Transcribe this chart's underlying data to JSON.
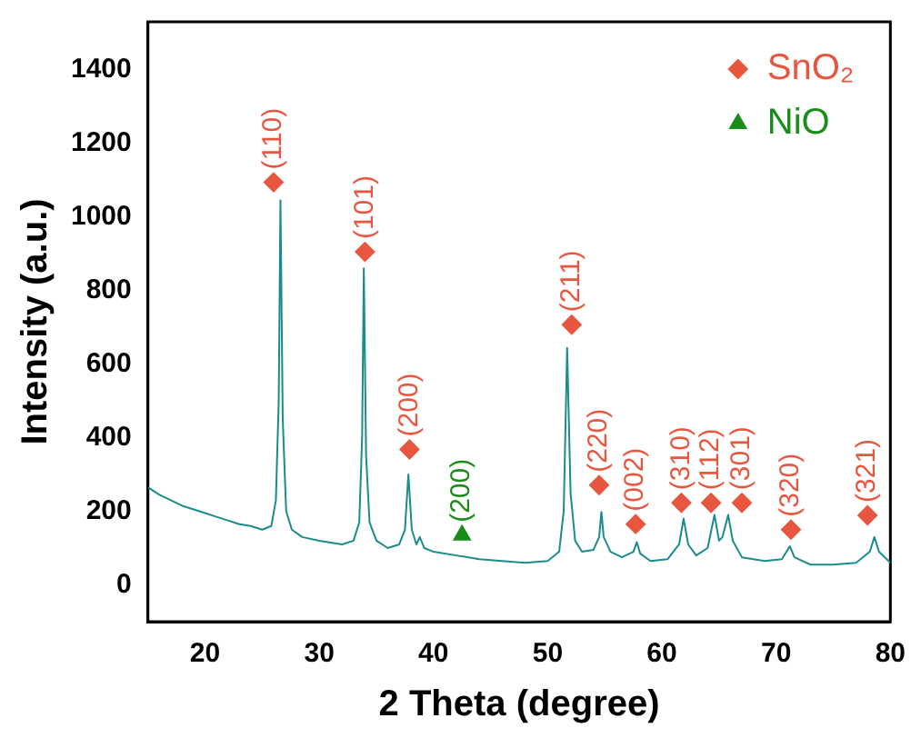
{
  "chart_data": {
    "type": "line",
    "xlabel": "2 Theta (degree)",
    "ylabel": "Intensity (a.u.)",
    "xlim": [
      15,
      80
    ],
    "xticks": [
      20,
      30,
      40,
      50,
      60,
      70,
      80
    ],
    "ylim": [
      -100,
      1530
    ],
    "yticks": [
      0,
      200,
      400,
      600,
      800,
      1000,
      1200,
      1400
    ],
    "grid": false,
    "legend": "top right",
    "series": [
      {
        "color": "#1a8c8c",
        "marker": "none",
        "line_style": "solid",
        "x": [
          15,
          16,
          17,
          18,
          19,
          20,
          21,
          22,
          23,
          24,
          25,
          25.8,
          26.2,
          26.45,
          26.6,
          26.8,
          27.1,
          27.6,
          28.5,
          30,
          31,
          32,
          33,
          33.5,
          33.75,
          33.9,
          34.1,
          34.4,
          35,
          36,
          37,
          37.5,
          37.8,
          38.1,
          38.5,
          38.8,
          39.2,
          40,
          42,
          44,
          46,
          48,
          50,
          51,
          51.4,
          51.7,
          52,
          52.4,
          53,
          54,
          54.5,
          54.7,
          54.9,
          55.5,
          56.5,
          57.5,
          57.8,
          58.1,
          59,
          60.5,
          61.5,
          61.9,
          62.3,
          63,
          64,
          64.6,
          65,
          65.3,
          65.8,
          66.2,
          67,
          69,
          70.5,
          71.2,
          71.6,
          73,
          75,
          77,
          78.2,
          78.6,
          79,
          80
        ],
        "values": [
          265,
          245,
          230,
          215,
          205,
          195,
          185,
          175,
          165,
          160,
          150,
          160,
          230,
          500,
          1045,
          450,
          200,
          150,
          130,
          120,
          115,
          110,
          120,
          170,
          400,
          860,
          350,
          170,
          120,
          100,
          110,
          150,
          300,
          150,
          110,
          130,
          100,
          90,
          80,
          70,
          65,
          60,
          65,
          90,
          200,
          644,
          250,
          120,
          90,
          95,
          130,
          198,
          130,
          90,
          75,
          90,
          116,
          85,
          65,
          70,
          110,
          180,
          110,
          80,
          100,
          190,
          120,
          130,
          190,
          120,
          75,
          65,
          70,
          105,
          75,
          55,
          55,
          60,
          90,
          130,
          90,
          60
        ]
      },
      {
        "name": "SnO₂",
        "type": "scatter",
        "color": "#e8563f",
        "marker": "diamond",
        "x": [
          26.0,
          34.0,
          37.9,
          52.1,
          54.5,
          57.7,
          61.7,
          64.3,
          67.0,
          71.3,
          78.0
        ],
        "values": [
          1094,
          905,
          368,
          707,
          271,
          165,
          223,
          223,
          223,
          150,
          189
        ]
      },
      {
        "name": "NiO",
        "type": "scatter",
        "color": "#1a8c1a",
        "marker": "triangle",
        "x": [
          42.5
        ],
        "values": [
          135
        ]
      }
    ],
    "annotations": [
      {
        "text": "(110)",
        "x": 26.0,
        "y": 1094
      },
      {
        "text": "(101)",
        "x": 34.0,
        "y": 905
      },
      {
        "text": "(200)",
        "x": 37.9,
        "y": 368
      },
      {
        "text": "(200)",
        "x": 42.5,
        "y": 135
      },
      {
        "text": "(211)",
        "x": 52.1,
        "y": 707
      },
      {
        "text": "(220)",
        "x": 54.5,
        "y": 271
      },
      {
        "text": "(002)",
        "x": 57.7,
        "y": 165
      },
      {
        "text": "(310)",
        "x": 61.7,
        "y": 223
      },
      {
        "text": "(112)",
        "x": 64.3,
        "y": 223
      },
      {
        "text": "(301)",
        "x": 67.0,
        "y": 223
      },
      {
        "text": "(320)",
        "x": 71.3,
        "y": 150
      },
      {
        "text": "(321)",
        "x": 78.0,
        "y": 189
      }
    ]
  }
}
